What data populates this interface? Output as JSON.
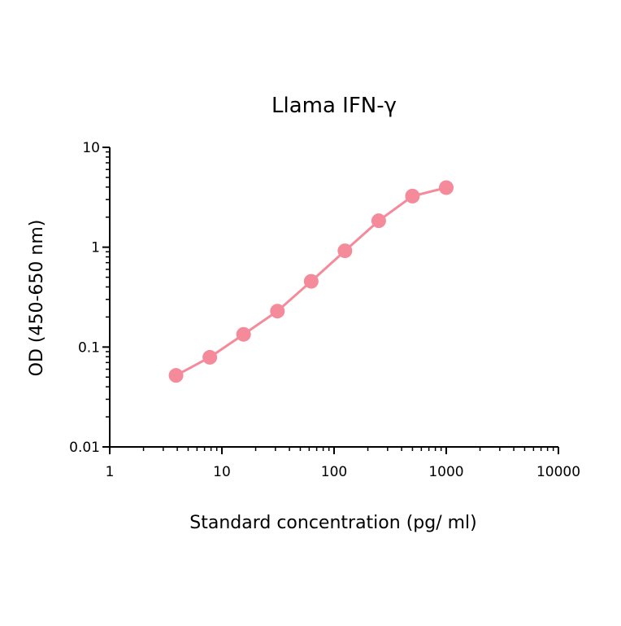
{
  "chart_data": {
    "type": "scatter",
    "title": "Llama IFN-γ",
    "xlabel": "Standard concentration (pg/ ml)",
    "ylabel": "OD (450-650 nm)",
    "xscale": "log",
    "yscale": "log",
    "xlim": [
      1,
      10000
    ],
    "ylim": [
      0.01,
      10
    ],
    "x_ticks": [
      "1",
      "10",
      "100",
      "1000",
      "10000"
    ],
    "y_ticks": [
      "0.01",
      "0.1",
      "1",
      "10"
    ],
    "grid": false,
    "legend": "none",
    "series": [
      {
        "color": "#f48a9a",
        "markers": true,
        "line": true,
        "points": [
          {
            "x": 3.9,
            "y": 0.052
          },
          {
            "x": 7.8,
            "y": 0.079
          },
          {
            "x": 15.6,
            "y": 0.134
          },
          {
            "x": 31.25,
            "y": 0.229
          },
          {
            "x": 62.5,
            "y": 0.455
          },
          {
            "x": 125,
            "y": 0.92
          },
          {
            "x": 250,
            "y": 1.84
          },
          {
            "x": 500,
            "y": 3.25
          },
          {
            "x": 1000,
            "y": 3.95
          }
        ]
      }
    ]
  }
}
